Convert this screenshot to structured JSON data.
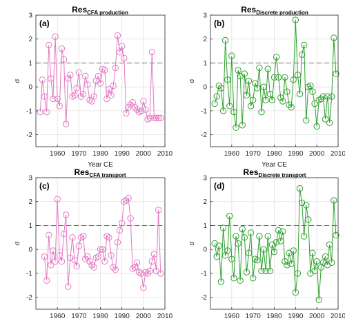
{
  "chart_data": [
    {
      "type": "line",
      "title": "Res",
      "title_subscript": "CFA production",
      "panel_label": "(a)",
      "xlabel": "Year CE",
      "ylabel": "σ",
      "xlim": [
        1950,
        2010
      ],
      "ylim": [
        -2.5,
        3
      ],
      "xticks": [
        1960,
        1970,
        1980,
        1990,
        2000,
        2010
      ],
      "yticks": [
        -2,
        -1,
        0,
        1,
        2,
        3
      ],
      "threshold": 1,
      "grid": true,
      "color": "#e377c2",
      "marker": "circle-open",
      "x": [
        1952,
        1953,
        1954,
        1955,
        1956,
        1957,
        1958,
        1959,
        1960,
        1961,
        1962,
        1963,
        1964,
        1965,
        1966,
        1967,
        1968,
        1969,
        1970,
        1971,
        1972,
        1973,
        1974,
        1975,
        1976,
        1977,
        1978,
        1979,
        1980,
        1981,
        1982,
        1983,
        1984,
        1985,
        1986,
        1987,
        1988,
        1989,
        1990,
        1991,
        1992,
        1993,
        1994,
        1995,
        1996,
        1997,
        1998,
        1999,
        2000,
        2001,
        2002,
        2003,
        2004,
        2005,
        2006,
        2007,
        2008
      ],
      "y": [
        -1.05,
        0.3,
        -0.4,
        -1.05,
        1.75,
        0.35,
        -0.5,
        2.1,
        -0.5,
        -0.8,
        1.6,
        1.15,
        -1.55,
        0.35,
        0.5,
        -0.4,
        -0.35,
        -0.05,
        0.6,
        -0.4,
        -0.3,
        0.45,
        0.1,
        -0.55,
        -0.6,
        -0.4,
        0.25,
        0.45,
        0.15,
        0.75,
        0.7,
        -0.5,
        -0.1,
        -0.35,
        0.05,
        0.8,
        2.15,
        1.45,
        1.7,
        1.2,
        -1.1,
        -0.85,
        -0.75,
        -0.65,
        -0.85,
        -0.95,
        -1.05,
        -1.0,
        -0.6,
        -0.95,
        -1.35,
        -1.3,
        1.45,
        -1.3,
        -1.3,
        -1.3,
        -1.3
      ]
    },
    {
      "type": "line",
      "title": "Res",
      "title_subscript": "Discrete production",
      "panel_label": "(b)",
      "xlabel": "Year CE",
      "ylabel": "σ",
      "xlim": [
        1950,
        2010
      ],
      "ylim": [
        -2.5,
        3
      ],
      "xticks": [
        1960,
        1970,
        1980,
        1990,
        2000,
        2010
      ],
      "yticks": [
        -2,
        -1,
        0,
        1,
        2,
        3
      ],
      "threshold": 1,
      "grid": true,
      "color": "#2ca02c",
      "marker": "circle-open",
      "x": [
        1952,
        1953,
        1954,
        1955,
        1956,
        1957,
        1958,
        1959,
        1960,
        1961,
        1962,
        1963,
        1964,
        1965,
        1966,
        1967,
        1968,
        1969,
        1970,
        1971,
        1972,
        1973,
        1974,
        1975,
        1976,
        1977,
        1978,
        1979,
        1980,
        1981,
        1982,
        1983,
        1984,
        1985,
        1986,
        1987,
        1988,
        1989,
        1990,
        1991,
        1992,
        1993,
        1994,
        1995,
        1996,
        1997,
        1998,
        1999,
        2000,
        2001,
        2002,
        2003,
        2004,
        2005,
        2006,
        2007,
        2008,
        2009
      ],
      "y": [
        -0.7,
        -0.4,
        0.05,
        -0.05,
        -1.0,
        1.95,
        0.3,
        -0.8,
        1.3,
        -1.05,
        -1.7,
        0.7,
        0.45,
        -1.6,
        0.55,
        -0.35,
        0.25,
        -0.8,
        -0.55,
        0.15,
        -0.05,
        0.8,
        -1.05,
        0.0,
        -0.55,
        0.75,
        -0.3,
        -0.55,
        0.4,
        1.25,
        0.4,
        -0.45,
        -0.6,
        0.4,
        -0.2,
        -0.75,
        -0.85,
        0.3,
        2.8,
        0.5,
        -0.3,
        1.35,
        1.75,
        -1.4,
        0.0,
        0.05,
        -0.2,
        -0.7,
        -1.65,
        -0.55,
        -0.5,
        -0.4,
        -1.35,
        -0.4,
        -1.5,
        -0.4,
        2.05,
        0.55
      ]
    },
    {
      "type": "line",
      "title": "Res",
      "title_subscript": "CFA transport",
      "panel_label": "(c)",
      "xlabel": "Year CE",
      "ylabel": "σ",
      "xlim": [
        1950,
        2010
      ],
      "ylim": [
        -2.5,
        3
      ],
      "xticks": [
        1960,
        1970,
        1980,
        1990,
        2000,
        2010
      ],
      "yticks": [
        -2,
        -1,
        0,
        1,
        2,
        3
      ],
      "threshold": 1,
      "grid": true,
      "color": "#e377c2",
      "marker": "circle-open",
      "x": [
        1954,
        1955,
        1956,
        1957,
        1958,
        1959,
        1960,
        1961,
        1962,
        1963,
        1964,
        1965,
        1966,
        1967,
        1968,
        1969,
        1970,
        1971,
        1972,
        1973,
        1974,
        1975,
        1976,
        1977,
        1978,
        1979,
        1980,
        1981,
        1982,
        1983,
        1984,
        1985,
        1986,
        1987,
        1988,
        1989,
        1990,
        1991,
        1992,
        1993,
        1994,
        1995,
        1996,
        1997,
        1998,
        1999,
        2000,
        2001,
        2002,
        2003,
        2004,
        2005,
        2006,
        2007,
        2008
      ],
      "y": [
        -0.3,
        -1.3,
        0.6,
        -0.65,
        -0.05,
        -0.5,
        2.1,
        -0.25,
        -0.5,
        0.65,
        1.45,
        -1.55,
        -0.35,
        0.5,
        -0.45,
        -0.7,
        0.15,
        0.5,
        0.55,
        -0.4,
        -0.3,
        -0.5,
        -0.65,
        -0.75,
        -0.35,
        -0.3,
        0.0,
        0.0,
        -0.5,
        0.55,
        0.5,
        -0.25,
        -0.75,
        -0.85,
        0.3,
        0.8,
        1.1,
        2.0,
        2.05,
        2.15,
        1.3,
        -0.8,
        -0.75,
        -0.55,
        -0.95,
        -1.0,
        -1.6,
        -0.95,
        -1.0,
        -0.9,
        -0.5,
        -0.2,
        -0.9,
        1.65,
        -1.0
      ]
    },
    {
      "type": "line",
      "title": "Res",
      "title_subscript": "Discrete transport",
      "panel_label": "(d)",
      "xlabel": "Year CE",
      "ylabel": "σ",
      "xlim": [
        1950,
        2010
      ],
      "ylim": [
        -2.5,
        3
      ],
      "xticks": [
        1960,
        1970,
        1980,
        1990,
        2000,
        2010
      ],
      "yticks": [
        -2,
        -1,
        0,
        1,
        2,
        3
      ],
      "threshold": 1,
      "grid": true,
      "color": "#2ca02c",
      "marker": "circle-open",
      "x": [
        1952,
        1953,
        1954,
        1955,
        1956,
        1957,
        1958,
        1959,
        1960,
        1961,
        1962,
        1963,
        1964,
        1965,
        1966,
        1967,
        1968,
        1969,
        1970,
        1971,
        1972,
        1973,
        1974,
        1975,
        1976,
        1977,
        1978,
        1979,
        1980,
        1981,
        1982,
        1983,
        1984,
        1985,
        1986,
        1987,
        1988,
        1989,
        1990,
        1991,
        1992,
        1993,
        1994,
        1995,
        1996,
        1997,
        1998,
        1999,
        2000,
        2001,
        2002,
        2003,
        2004,
        2005,
        2006,
        2007,
        2008,
        2009
      ],
      "y": [
        0.25,
        -0.3,
        0.15,
        -1.35,
        0.9,
        -0.25,
        -0.05,
        1.4,
        -0.4,
        -1.2,
        0.55,
        0.25,
        -1.3,
        0.85,
        0.5,
        -0.95,
        -0.15,
        0.7,
        -1.2,
        -0.4,
        -0.45,
        0.55,
        -0.9,
        0.0,
        -0.9,
        0.55,
        -0.9,
        0.2,
        -0.1,
        0.3,
        0.8,
        0.35,
        0.75,
        -0.5,
        -0.65,
        -0.15,
        -0.6,
        -0.05,
        -1.8,
        -1.0,
        2.55,
        1.95,
        0.55,
        1.85,
        1.25,
        -1.0,
        -0.15,
        -0.9,
        -0.5,
        -2.1,
        -0.75,
        -0.55,
        -0.3,
        -0.65,
        0.2,
        -0.55,
        2.05,
        0.6
      ]
    }
  ]
}
